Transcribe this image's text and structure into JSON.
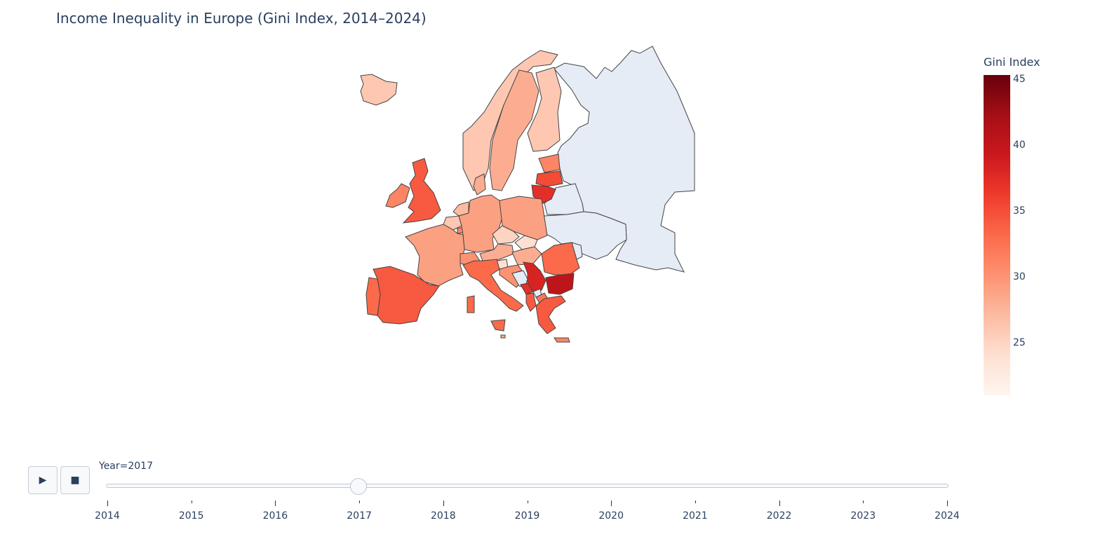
{
  "title": "Income Inequality in Europe (Gini Index, 2014–2024)",
  "colorbar": {
    "title": "Gini Index",
    "min": 21,
    "max": 45,
    "ticks": [
      "25",
      "30",
      "35",
      "40",
      "45"
    ],
    "colorscale": [
      "#fff5f0",
      "#fee0d2",
      "#fcbba1",
      "#fc9272",
      "#fb6a4a",
      "#ef3b2c",
      "#cb181d",
      "#a50f15",
      "#67000d"
    ]
  },
  "no_data_color": "#e5ecf6",
  "controls": {
    "play_icon": "play-icon",
    "play_glyph": "▶",
    "stop_icon": "stop-icon",
    "stop_glyph": "■"
  },
  "slider": {
    "label": "Year=2017",
    "years": [
      "2014",
      "2015",
      "2016",
      "2017",
      "2018",
      "2019",
      "2020",
      "2021",
      "2022",
      "2023",
      "2024"
    ],
    "selected": "2017"
  },
  "chart_data": {
    "type": "choropleth",
    "title": "Income Inequality in Europe (Gini Index, 2014–2024)",
    "frame": "2017",
    "color_label": "Gini Index",
    "range": [
      21,
      45
    ],
    "regions": [
      {
        "name": "Iceland",
        "value": 26
      },
      {
        "name": "Norway",
        "value": 26
      },
      {
        "name": "Sweden",
        "value": 28
      },
      {
        "name": "Finland",
        "value": 26
      },
      {
        "name": "Denmark",
        "value": 28
      },
      {
        "name": "United Kingdom",
        "value": 34
      },
      {
        "name": "Ireland",
        "value": 31
      },
      {
        "name": "Netherlands",
        "value": 27
      },
      {
        "name": "Belgium",
        "value": 26
      },
      {
        "name": "Luxembourg",
        "value": 31
      },
      {
        "name": "France",
        "value": 29
      },
      {
        "name": "Germany",
        "value": 29
      },
      {
        "name": "Switzerland",
        "value": 30
      },
      {
        "name": "Austria",
        "value": 28
      },
      {
        "name": "Czechia",
        "value": 25
      },
      {
        "name": "Slovakia",
        "value": 24
      },
      {
        "name": "Poland",
        "value": 29
      },
      {
        "name": "Hungary",
        "value": 28
      },
      {
        "name": "Slovenia",
        "value": 24
      },
      {
        "name": "Croatia",
        "value": 30
      },
      {
        "name": "Serbia",
        "value": 38
      },
      {
        "name": "Montenegro",
        "value": 37
      },
      {
        "name": "North Macedonia",
        "value": 32
      },
      {
        "name": "Albania",
        "value": 34
      },
      {
        "name": "Romania",
        "value": 33
      },
      {
        "name": "Bulgaria",
        "value": 40
      },
      {
        "name": "Greece",
        "value": 34
      },
      {
        "name": "Italy",
        "value": 33
      },
      {
        "name": "Spain",
        "value": 34
      },
      {
        "name": "Portugal",
        "value": 33
      },
      {
        "name": "Estonia",
        "value": 31
      },
      {
        "name": "Latvia",
        "value": 35
      },
      {
        "name": "Lithuania",
        "value": 37
      },
      {
        "name": "Malta",
        "value": 28
      },
      {
        "name": "Cyprus",
        "value": 31
      },
      {
        "name": "Russia",
        "value": null
      },
      {
        "name": "Belarus",
        "value": null
      },
      {
        "name": "Ukraine",
        "value": null
      },
      {
        "name": "Moldova",
        "value": null
      },
      {
        "name": "Bosnia and Herzegovina",
        "value": null
      },
      {
        "name": "Kosovo",
        "value": null
      }
    ]
  }
}
